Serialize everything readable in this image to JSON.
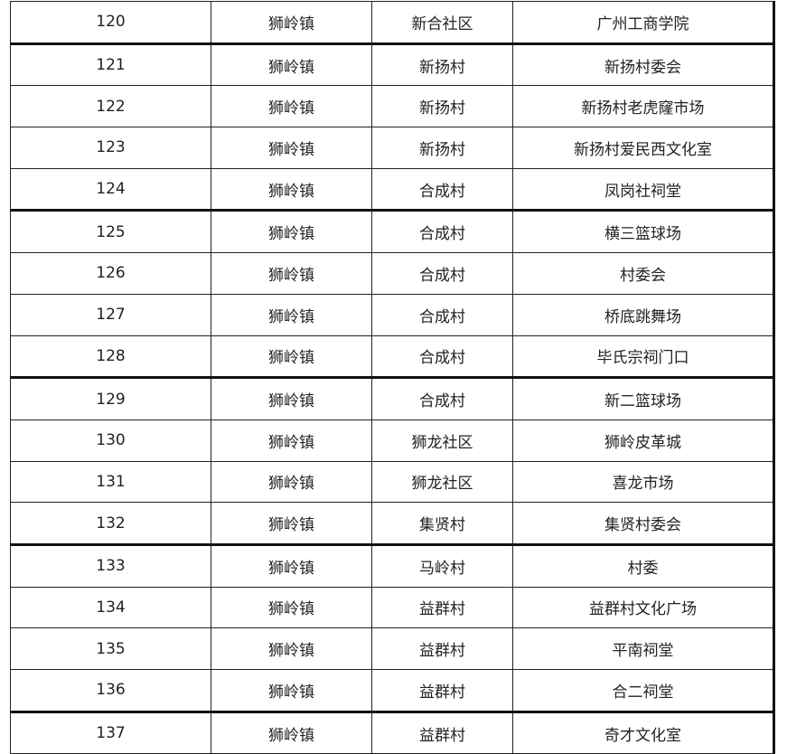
{
  "table": {
    "rows": [
      [
        "120",
        "狮岭镇",
        "新合社区",
        "广州工商学院"
      ],
      [
        "121",
        "狮岭镇",
        "新扬村",
        "新扬村委会"
      ],
      [
        "122",
        "狮岭镇",
        "新扬村",
        "新扬村老虎窿市场"
      ],
      [
        "123",
        "狮岭镇",
        "新扬村",
        "新扬村爱民西文化室"
      ],
      [
        "124",
        "狮岭镇",
        "合成村",
        "凤岗社祠堂"
      ],
      [
        "125",
        "狮岭镇",
        "合成村",
        "横三篮球场"
      ],
      [
        "126",
        "狮岭镇",
        "合成村",
        "村委会"
      ],
      [
        "127",
        "狮岭镇",
        "合成村",
        "桥底跳舞场"
      ],
      [
        "128",
        "狮岭镇",
        "合成村",
        "毕氏宗祠门口"
      ],
      [
        "129",
        "狮岭镇",
        "合成村",
        "新二篮球场"
      ],
      [
        "130",
        "狮岭镇",
        "狮龙社区",
        "狮岭皮革城"
      ],
      [
        "131",
        "狮岭镇",
        "狮龙社区",
        "喜龙市场"
      ],
      [
        "132",
        "狮岭镇",
        "集贤村",
        "集贤村委会"
      ],
      [
        "133",
        "狮岭镇",
        "马岭村",
        "村委"
      ],
      [
        "134",
        "狮岭镇",
        "益群村",
        "益群村文化广场"
      ],
      [
        "135",
        "狮岭镇",
        "益群村",
        "平南祠堂"
      ],
      [
        "136",
        "狮岭镇",
        "益群村",
        "合二祠堂"
      ],
      [
        "137",
        "狮岭镇",
        "益群村",
        "奇才文化室"
      ]
    ]
  }
}
